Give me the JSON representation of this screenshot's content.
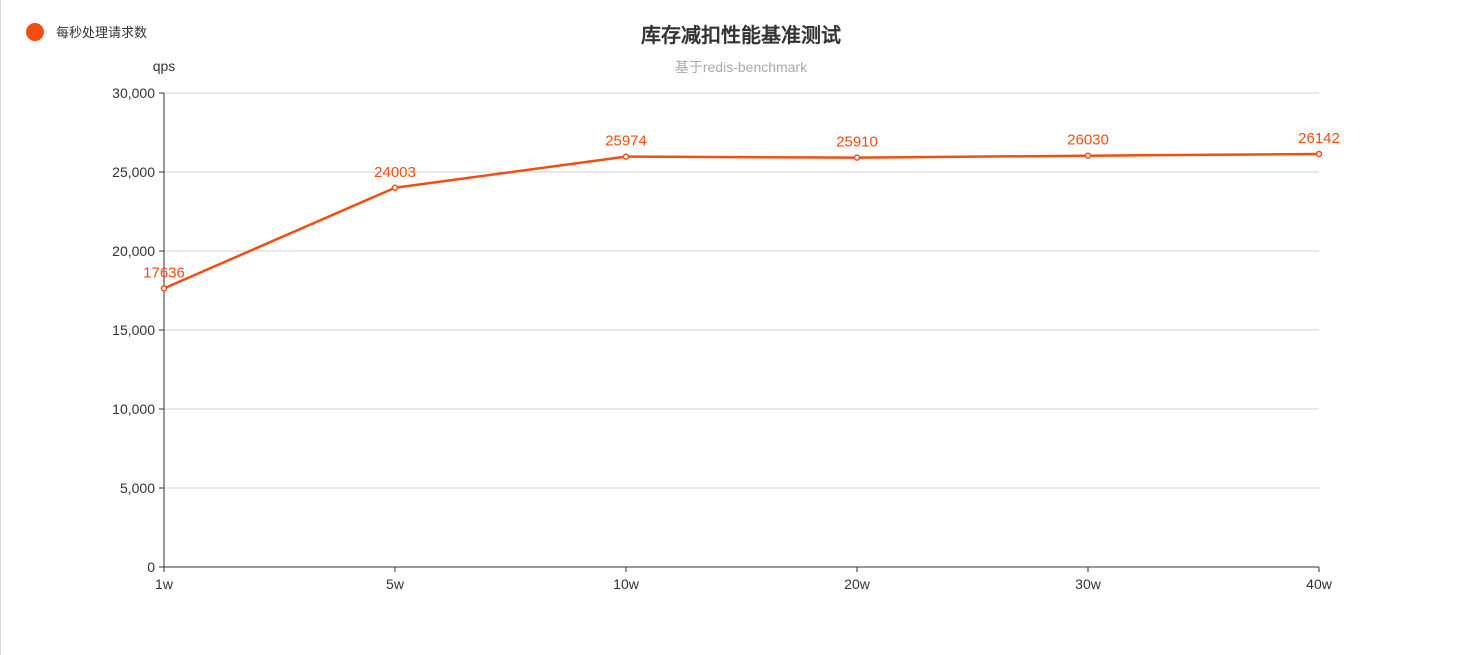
{
  "legend": {
    "label": "每秒处理请求数",
    "color": "#f24e12"
  },
  "title": "库存减扣性能基准测试",
  "subtitle": "基于redis-benchmark",
  "chart_data": {
    "type": "line",
    "title": "库存减扣性能基准测试",
    "subtitle": "基于redis-benchmark",
    "ylabel": "qps",
    "xlabel": "",
    "categories": [
      "1w",
      "5w",
      "10w",
      "20w",
      "30w",
      "40w"
    ],
    "series": [
      {
        "name": "每秒处理请求数",
        "color": "#f24e12",
        "values": [
          17636,
          24003,
          25974,
          25910,
          26030,
          26142
        ]
      }
    ],
    "ylim": [
      0,
      30000
    ],
    "yticks": [
      0,
      5000,
      10000,
      15000,
      20000,
      25000,
      30000
    ],
    "ytick_labels": [
      "0",
      "5,000",
      "10,000",
      "15,000",
      "20,000",
      "25,000",
      "30,000"
    ],
    "grid": true,
    "legend_position": "top-left",
    "data_labels": true
  }
}
